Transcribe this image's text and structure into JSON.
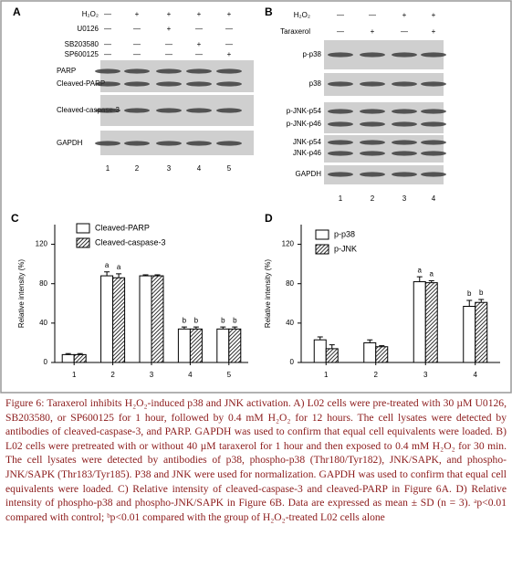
{
  "blots": [
    {
      "panel": "A",
      "treatments": [
        {
          "label": "H₂O₂",
          "marks": [
            "—",
            "+",
            "+",
            "+",
            "+"
          ]
        },
        {
          "label": "U0126",
          "marks": [
            "—",
            "—",
            "+",
            "—",
            "—"
          ]
        },
        {
          "label": "SB203580",
          "marks": [
            "—",
            "—",
            "—",
            "+",
            "—"
          ]
        },
        {
          "label": "SP600125",
          "marks": [
            "—",
            "—",
            "—",
            "—",
            "+"
          ]
        }
      ],
      "bands": [
        "PARP",
        "Cleaved-PARP",
        "Cleaved-caspase-3",
        "GAPDH"
      ],
      "lanes": [
        "1",
        "2",
        "3",
        "4",
        "5"
      ]
    },
    {
      "panel": "B",
      "treatments": [
        {
          "label": "H₂O₂",
          "marks": [
            "—",
            "—",
            "+",
            "+"
          ]
        },
        {
          "label": "Taraxerol",
          "marks": [
            "—",
            "+",
            "—",
            "+"
          ]
        }
      ],
      "bands": [
        "p-p38",
        "p38",
        "p-JNK-p54",
        "p-JNK-p46",
        "JNK-p54",
        "JNK-p46",
        "GAPDH"
      ],
      "lanes": [
        "1",
        "2",
        "3",
        "4"
      ]
    }
  ],
  "chart_data": [
    {
      "type": "bar",
      "panel": "C",
      "y_label": "Relative intensity (%)",
      "categories": [
        "1",
        "2",
        "3",
        "4",
        "5"
      ],
      "ylim": [
        0,
        140
      ],
      "yticks": [
        0,
        40,
        80,
        120
      ],
      "series": [
        {
          "name": "Cleaved-PARP",
          "color": "#ffffff",
          "hatch": false,
          "values": [
            8,
            88,
            88,
            34,
            34
          ],
          "errors": [
            1,
            4,
            1,
            2,
            2
          ],
          "letters": [
            null,
            "a",
            null,
            "b",
            "b"
          ]
        },
        {
          "name": "Cleaved-caspase-3",
          "color": "#ffffff",
          "hatch": true,
          "values": [
            8,
            86,
            88,
            34,
            34
          ],
          "errors": [
            1,
            4,
            1,
            2,
            2
          ],
          "letters": [
            null,
            "a",
            null,
            "b",
            "b"
          ]
        }
      ]
    },
    {
      "type": "bar",
      "panel": "D",
      "y_label": "Relative intensity (%)",
      "categories": [
        "1",
        "2",
        "3",
        "4"
      ],
      "ylim": [
        0,
        140
      ],
      "yticks": [
        0,
        40,
        80,
        120
      ],
      "series": [
        {
          "name": "p-p38",
          "color": "#ffffff",
          "hatch": false,
          "values": [
            23,
            20,
            82,
            57
          ],
          "errors": [
            3,
            3,
            5,
            6
          ],
          "letters": [
            null,
            null,
            "a",
            "b"
          ]
        },
        {
          "name": "p-JNK",
          "color": "#ffffff",
          "hatch": true,
          "values": [
            14,
            16,
            81,
            61
          ],
          "errors": [
            4,
            1,
            2,
            3
          ],
          "letters": [
            null,
            null,
            "a",
            "b"
          ]
        }
      ]
    }
  ],
  "caption": "Figure 6: Taraxerol inhibits H₂O₂-induced p38 and JNK activation. A) L02 cells were pre-treated with 30 µM U0126, SB203580, or SP600125 for 1 hour, followed by 0.4 mM H₂O₂ for 12 hours. The cell lysates were detected by antibodies of cleaved-caspase-3, and PARP. GAPDH was used to confirm that equal cell equivalents were loaded. B) L02 cells were pretreated with or without 40 µM taraxerol for 1 hour and then exposed to 0.4 mM H₂O₂ for 30 min. The cell lysates were detected by antibodies of p38, phospho-p38 (Thr180/Tyr182), JNK/SAPK, and phospho-JNK/SAPK (Thr183/Tyr185). P38 and JNK were used for normalization. GAPDH was used to confirm that equal cell equivalents were loaded. C) Relative intensity of cleaved-caspase-3 and cleaved-PARP in Figure 6A. D) Relative intensity of phospho-p38 and phospho-JNK/SAPK in Figure 6B. Data are expressed as mean ± SD (n = 3). ᵃp<0.01 compared with control; ᵇp<0.01 compared with the group of H₂O₂-treated L02 cells alone"
}
